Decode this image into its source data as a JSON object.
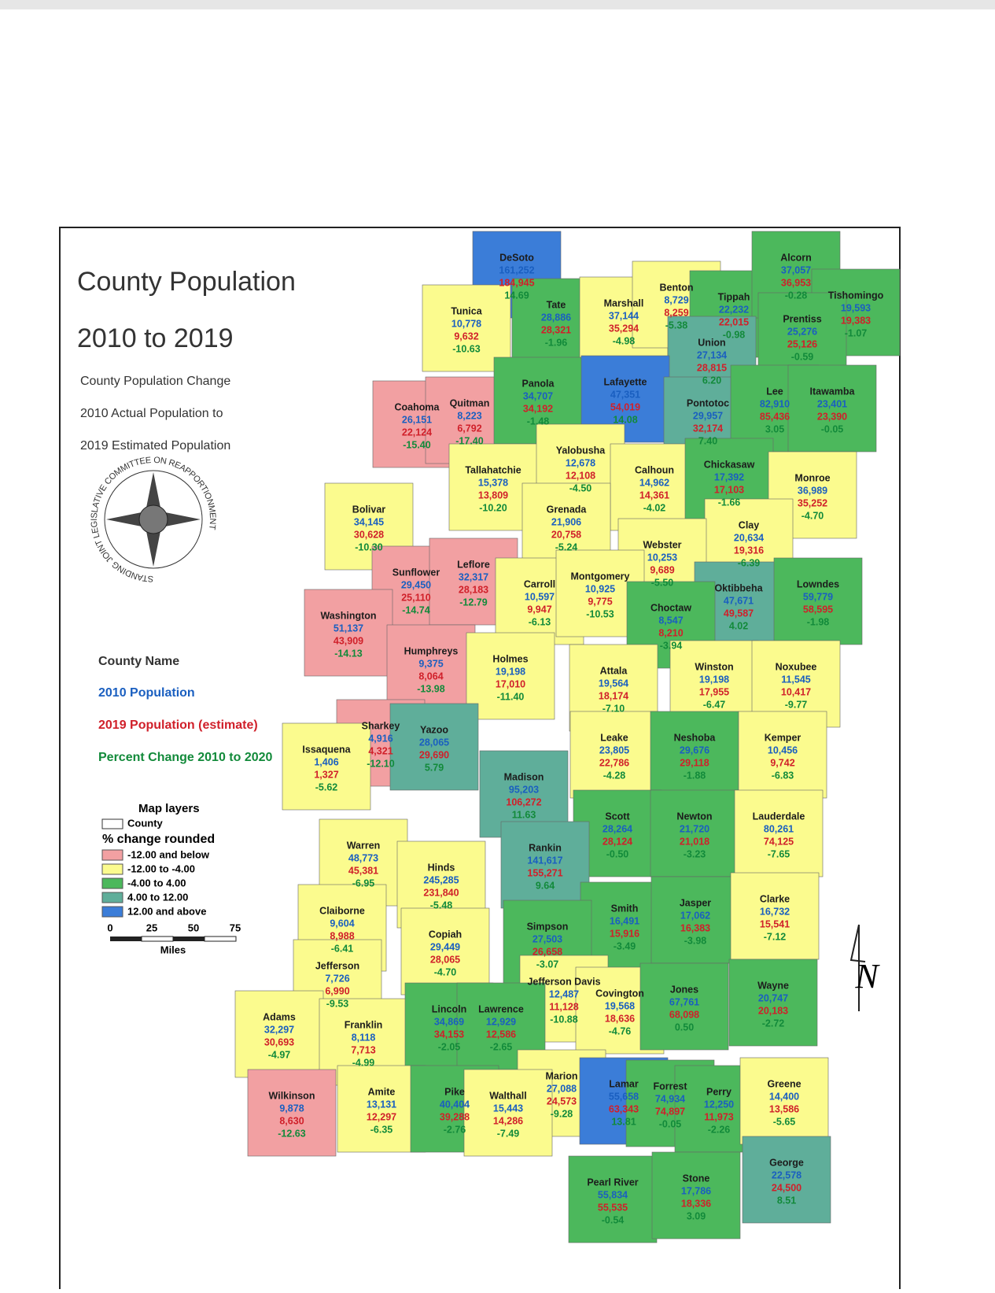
{
  "title": "County Population",
  "subtitle": "2010 to 2019",
  "description": [
    "County Population Change",
    "2010 Actual Population to",
    "2019 Estimated Population"
  ],
  "seal": "STANDING JOINT LEGISLATIVE COMMITTEE ON REAPPORTIONMENT",
  "key": [
    "County Name",
    "2010 Population",
    "2019 Population (estimate)",
    "Percent Change 2010 to 2020"
  ],
  "layers": {
    "title": "Map layers",
    "county": "County",
    "subtitle": "% change rounded",
    "classes": [
      {
        "label": "-12.00 and below",
        "color": "#f2a0a2"
      },
      {
        "label": "-12.00 to -4.00",
        "color": "#fbfb8e"
      },
      {
        "label": "-4.00 to 4.00",
        "color": "#4cb85c"
      },
      {
        "label": "4.00 to 12.00",
        "color": "#5fae9a"
      },
      {
        "label": "12.00 and above",
        "color": "#3b7dd8"
      }
    ]
  },
  "scale": {
    "ticks": [
      "0",
      "25",
      "50",
      "75"
    ],
    "unit": "Miles"
  },
  "north": "N",
  "counties": [
    [
      "DeSoto",
      "161,252",
      "184,945",
      "14.69",
      "#3b7dd8"
    ],
    [
      "Tunica",
      "10,778",
      "9,632",
      "-10.63",
      "#fbfb8e"
    ],
    [
      "Tate",
      "28,886",
      "28,321",
      "-1.96",
      "#4cb85c"
    ],
    [
      "Marshall",
      "37,144",
      "35,294",
      "-4.98",
      "#fbfb8e"
    ],
    [
      "Benton",
      "8,729",
      "8,259",
      "-5.38",
      "#fbfb8e"
    ],
    [
      "Tippah",
      "22,232",
      "22,015",
      "-0.98",
      "#4cb85c"
    ],
    [
      "Alcorn",
      "37,057",
      "36,953",
      "-0.28",
      "#4cb85c"
    ],
    [
      "Tishomingo",
      "19,593",
      "19,383",
      "-1.07",
      "#4cb85c"
    ],
    [
      "Prentiss",
      "25,276",
      "25,126",
      "-0.59",
      "#4cb85c"
    ],
    [
      "Union",
      "27,134",
      "28,815",
      "6.20",
      "#5fae9a"
    ],
    [
      "Coahoma",
      "26,151",
      "22,124",
      "-15.40",
      "#f2a0a2"
    ],
    [
      "Quitman",
      "8,223",
      "6,792",
      "-17.40",
      "#f2a0a2"
    ],
    [
      "Panola",
      "34,707",
      "34,192",
      "-1.48",
      "#4cb85c"
    ],
    [
      "Lafayette",
      "47,351",
      "54,019",
      "14.08",
      "#3b7dd8"
    ],
    [
      "Pontotoc",
      "29,957",
      "32,174",
      "7.40",
      "#5fae9a"
    ],
    [
      "Lee",
      "82,910",
      "85,436",
      "3.05",
      "#4cb85c"
    ],
    [
      "Itawamba",
      "23,401",
      "23,390",
      "-0.05",
      "#4cb85c"
    ],
    [
      "Tallahatchie",
      "15,378",
      "13,809",
      "-10.20",
      "#fbfb8e"
    ],
    [
      "Yalobusha",
      "12,678",
      "12,108",
      "-4.50",
      "#fbfb8e"
    ],
    [
      "Calhoun",
      "14,962",
      "14,361",
      "-4.02",
      "#fbfb8e"
    ],
    [
      "Chickasaw",
      "17,392",
      "17,103",
      "-1.66",
      "#4cb85c"
    ],
    [
      "Monroe",
      "36,989",
      "35,252",
      "-4.70",
      "#fbfb8e"
    ],
    [
      "Bolivar",
      "34,145",
      "30,628",
      "-10.30",
      "#fbfb8e"
    ],
    [
      "Grenada",
      "21,906",
      "20,758",
      "-5.24",
      "#fbfb8e"
    ],
    [
      "Clay",
      "20,634",
      "19,316",
      "-6.39",
      "#fbfb8e"
    ],
    [
      "Webster",
      "10,253",
      "9,689",
      "-5.50",
      "#fbfb8e"
    ],
    [
      "Sunflower",
      "29,450",
      "25,110",
      "-14.74",
      "#f2a0a2"
    ],
    [
      "Leflore",
      "32,317",
      "28,183",
      "-12.79",
      "#f2a0a2"
    ],
    [
      "Carroll",
      "10,597",
      "9,947",
      "-6.13",
      "#fbfb8e"
    ],
    [
      "Montgomery",
      "10,925",
      "9,775",
      "-10.53",
      "#fbfb8e"
    ],
    [
      "Oktibbeha",
      "47,671",
      "49,587",
      "4.02",
      "#5fae9a"
    ],
    [
      "Lowndes",
      "59,779",
      "58,595",
      "-1.98",
      "#4cb85c"
    ],
    [
      "Choctaw",
      "8,547",
      "8,210",
      "-3.94",
      "#4cb85c"
    ],
    [
      "Washington",
      "51,137",
      "43,909",
      "-14.13",
      "#f2a0a2"
    ],
    [
      "Humphreys",
      "9,375",
      "8,064",
      "-13.98",
      "#f2a0a2"
    ],
    [
      "Holmes",
      "19,198",
      "17,010",
      "-11.40",
      "#fbfb8e"
    ],
    [
      "Attala",
      "19,564",
      "18,174",
      "-7.10",
      "#fbfb8e"
    ],
    [
      "Winston",
      "19,198",
      "17,955",
      "-6.47",
      "#fbfb8e"
    ],
    [
      "Noxubee",
      "11,545",
      "10,417",
      "-9.77",
      "#fbfb8e"
    ],
    [
      "Sharkey",
      "4,916",
      "4,321",
      "-12.10",
      "#f2a0a2"
    ],
    [
      "Issaquena",
      "1,406",
      "1,327",
      "-5.62",
      "#fbfb8e"
    ],
    [
      "Yazoo",
      "28,065",
      "29,690",
      "5.79",
      "#5fae9a"
    ],
    [
      "Madison",
      "95,203",
      "106,272",
      "11.63",
      "#5fae9a"
    ],
    [
      "Leake",
      "23,805",
      "22,786",
      "-4.28",
      "#fbfb8e"
    ],
    [
      "Neshoba",
      "29,676",
      "29,118",
      "-1.88",
      "#4cb85c"
    ],
    [
      "Kemper",
      "10,456",
      "9,742",
      "-6.83",
      "#fbfb8e"
    ],
    [
      "Scott",
      "28,264",
      "28,124",
      "-0.50",
      "#4cb85c"
    ],
    [
      "Newton",
      "21,720",
      "21,018",
      "-3.23",
      "#4cb85c"
    ],
    [
      "Lauderdale",
      "80,261",
      "74,125",
      "-7.65",
      "#fbfb8e"
    ],
    [
      "Warren",
      "48,773",
      "45,381",
      "-6.95",
      "#fbfb8e"
    ],
    [
      "Hinds",
      "245,285",
      "231,840",
      "-5.48",
      "#fbfb8e"
    ],
    [
      "Rankin",
      "141,617",
      "155,271",
      "9.64",
      "#5fae9a"
    ],
    [
      "Smith",
      "16,491",
      "15,916",
      "-3.49",
      "#4cb85c"
    ],
    [
      "Jasper",
      "17,062",
      "16,383",
      "-3.98",
      "#4cb85c"
    ],
    [
      "Clarke",
      "16,732",
      "15,541",
      "-7.12",
      "#fbfb8e"
    ],
    [
      "Claiborne",
      "9,604",
      "8,988",
      "-6.41",
      "#fbfb8e"
    ],
    [
      "Copiah",
      "29,449",
      "28,065",
      "-4.70",
      "#fbfb8e"
    ],
    [
      "Simpson",
      "27,503",
      "26,658",
      "-3.07",
      "#4cb85c"
    ],
    [
      "Jefferson",
      "7,726",
      "6,990",
      "-9.53",
      "#fbfb8e"
    ],
    [
      "Jefferson Davis",
      "12,487",
      "11,128",
      "-10.88",
      "#fbfb8e"
    ],
    [
      "Covington",
      "19,568",
      "18,636",
      "-4.76",
      "#fbfb8e"
    ],
    [
      "Jones",
      "67,761",
      "68,098",
      "0.50",
      "#4cb85c"
    ],
    [
      "Wayne",
      "20,747",
      "20,183",
      "-2.72",
      "#4cb85c"
    ],
    [
      "Adams",
      "32,297",
      "30,693",
      "-4.97",
      "#fbfb8e"
    ],
    [
      "Franklin",
      "8,118",
      "7,713",
      "-4.99",
      "#fbfb8e"
    ],
    [
      "Lincoln",
      "34,869",
      "34,153",
      "-2.05",
      "#4cb85c"
    ],
    [
      "Lawrence",
      "12,929",
      "12,586",
      "-2.65",
      "#4cb85c"
    ],
    [
      "Marion",
      "27,088",
      "24,573",
      "-9.28",
      "#fbfb8e"
    ],
    [
      "Wilkinson",
      "9,878",
      "8,630",
      "-12.63",
      "#f2a0a2"
    ],
    [
      "Amite",
      "13,131",
      "12,297",
      "-6.35",
      "#fbfb8e"
    ],
    [
      "Pike",
      "40,404",
      "39,288",
      "-2.76",
      "#4cb85c"
    ],
    [
      "Walthall",
      "15,443",
      "14,286",
      "-7.49",
      "#fbfb8e"
    ],
    [
      "Lamar",
      "55,658",
      "63,343",
      "13.81",
      "#3b7dd8"
    ],
    [
      "Forrest",
      "74,934",
      "74,897",
      "-0.05",
      "#4cb85c"
    ],
    [
      "Perry",
      "12,250",
      "11,973",
      "-2.26",
      "#4cb85c"
    ],
    [
      "Greene",
      "14,400",
      "13,586",
      "-5.65",
      "#fbfb8e"
    ],
    [
      "George",
      "22,578",
      "24,500",
      "8.51",
      "#5fae9a"
    ],
    [
      "Pearl River",
      "55,834",
      "55,535",
      "-0.54",
      "#4cb85c"
    ],
    [
      "Stone",
      "17,786",
      "18,336",
      "3.09",
      "#4cb85c"
    ]
  ]
}
